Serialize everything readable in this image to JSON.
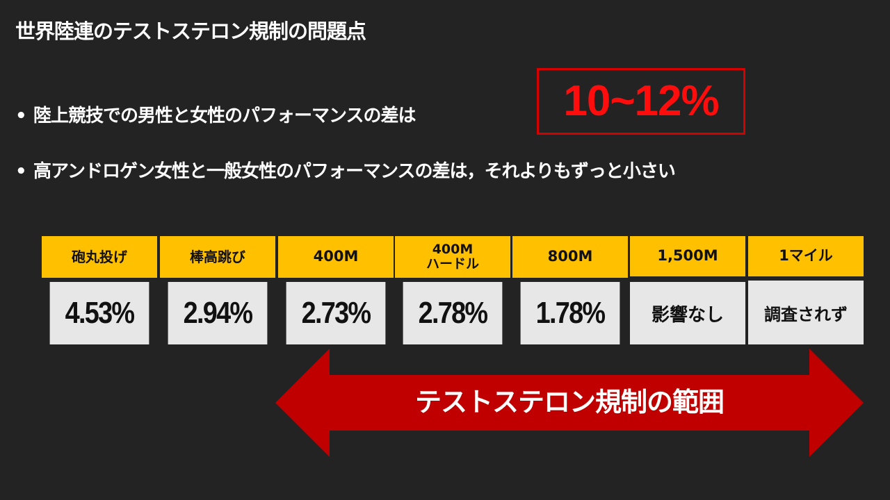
{
  "title": "世界陸連のテストステロン規制の問題点",
  "bullets": [
    {
      "symbol": "•",
      "text": "陸上競技での男性と女性のパフォーマンスの差は"
    },
    {
      "symbol": "•",
      "text": "高アンドロゲン女性と一般女性のパフォーマンスの差は，それよりもずっと小さい"
    }
  ],
  "highlight": "10~12%",
  "colors": {
    "background": "#232323",
    "header_fill": "#ffc000",
    "value_fill": "#e7e7e7",
    "highlight_red": "#ff0d0d",
    "arrow_red": "#c00000"
  },
  "table": {
    "columns": [
      {
        "header": [
          "砲丸投げ"
        ],
        "value": "4.53%"
      },
      {
        "header": [
          "棒高跳び"
        ],
        "value": "2.94%"
      },
      {
        "header": [
          "400M"
        ],
        "value": "2.73%"
      },
      {
        "header": [
          "400M",
          "ハードル"
        ],
        "value": "2.78%"
      },
      {
        "header": [
          "800M"
        ],
        "value": "1.78%"
      },
      {
        "header": [
          "1,500M"
        ],
        "value": "影響なし"
      },
      {
        "header": [
          "1マイル"
        ],
        "value": "調査されず"
      }
    ]
  },
  "range_arrow": {
    "label": "テストステロン規制の範囲",
    "icon": "double-headed-arrow-icon"
  }
}
